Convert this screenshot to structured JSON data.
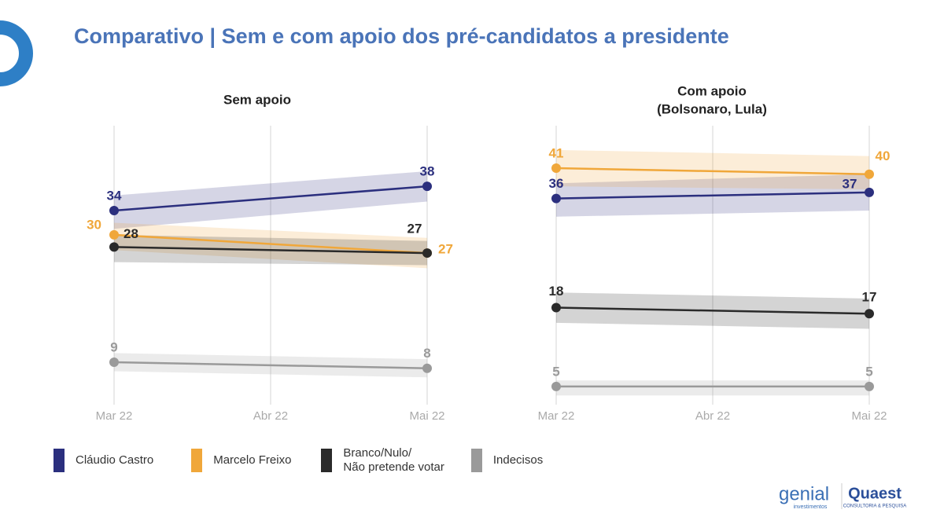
{
  "title": "Comparativo | Sem e com apoio dos pré-candidatos a presidente",
  "logos": {
    "genial": "genial",
    "genial_sub": "investimentos",
    "quaest": "Quaest",
    "quaest_sub": "CONSULTORIA & PESQUISA"
  },
  "chart_data": [
    {
      "type": "line",
      "title": "Sem apoio",
      "x": [
        "Mar 22",
        "Mai 22"
      ],
      "xticks": [
        "Mar 22",
        "Abr 22",
        "Mai 22"
      ],
      "ylim": [
        2,
        48
      ],
      "grid": true,
      "series": [
        {
          "name": "Cláudio Castro",
          "color": "#2b2f7e",
          "values": [
            34,
            38
          ],
          "lower": [
            31,
            35.5
          ],
          "upper": [
            36.5,
            40.5
          ]
        },
        {
          "name": "Marcelo Freixo",
          "color": "#f0a73a",
          "values": [
            30,
            27
          ],
          "lower": [
            27.5,
            24.5
          ],
          "upper": [
            32,
            29.5
          ]
        },
        {
          "name": "Branco/Nulo/\nNão pretende votar",
          "color": "#2a2a2a",
          "values": [
            28,
            27
          ],
          "lower": [
            25.5,
            25
          ],
          "upper": [
            30,
            29
          ]
        },
        {
          "name": "Indecisos",
          "color": "#9a9a9a",
          "values": [
            9,
            8
          ],
          "lower": [
            7.5,
            6.5
          ],
          "upper": [
            10.5,
            9.5
          ]
        }
      ]
    },
    {
      "type": "line",
      "title": "Com apoio",
      "subtitle": "(Bolsonaro, Lula)",
      "x": [
        "Mar 22",
        "Mai 22"
      ],
      "xticks": [
        "Mar 22",
        "Abr 22",
        "Mai 22"
      ],
      "ylim": [
        2,
        48
      ],
      "grid": true,
      "series": [
        {
          "name": "Cláudio Castro",
          "color": "#2b2f7e",
          "values": [
            36,
            37
          ],
          "lower": [
            33,
            34
          ],
          "upper": [
            38.5,
            40
          ]
        },
        {
          "name": "Marcelo Freixo",
          "color": "#f0a73a",
          "values": [
            41,
            40
          ],
          "lower": [
            38,
            37.5
          ],
          "upper": [
            44,
            43
          ]
        },
        {
          "name": "Branco/Nulo/\nNão pretende votar",
          "color": "#2a2a2a",
          "values": [
            18,
            17
          ],
          "lower": [
            15.5,
            14.5
          ],
          "upper": [
            20.5,
            19.5
          ]
        },
        {
          "name": "Indecisos",
          "color": "#9a9a9a",
          "values": [
            5,
            5
          ],
          "lower": [
            3.5,
            3.5
          ],
          "upper": [
            6,
            6
          ]
        }
      ]
    }
  ]
}
